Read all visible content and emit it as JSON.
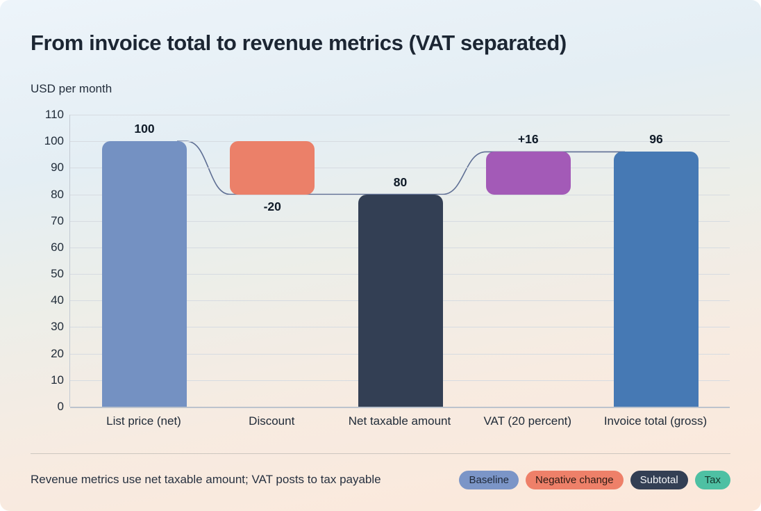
{
  "card": {
    "title": "From invoice total to revenue metrics (VAT separated)",
    "axis_title": "USD per month",
    "footnote": "Revenue metrics use net taxable amount; VAT posts to tax payable"
  },
  "legend": [
    {
      "label": "Baseline",
      "bg": "#7b95c7",
      "fg": "#1e2838"
    },
    {
      "label": "Negative change",
      "bg": "#ee8069",
      "fg": "#2b1a14"
    },
    {
      "label": "Subtotal",
      "bg": "#333f54",
      "fg": "#f4f6f9"
    },
    {
      "label": "Tax",
      "bg": "#4ec0a3",
      "fg": "#13342a"
    }
  ],
  "chart_data": {
    "type": "bar",
    "subtype": "waterfall",
    "title": "From invoice total to revenue metrics (VAT separated)",
    "ylabel": "USD per month",
    "ylim": [
      0,
      110
    ],
    "y_ticks": [
      0,
      10,
      20,
      30,
      40,
      50,
      60,
      70,
      80,
      90,
      100,
      110
    ],
    "grid": true,
    "legend_position": "bottom-right",
    "categories": [
      "List price (net)",
      "Discount",
      "Net taxable amount",
      "VAT (20 percent)",
      "Invoice total (gross)"
    ],
    "bars": [
      {
        "category": "List price (net)",
        "start": 0,
        "end": 100,
        "value": 100,
        "label": "100",
        "label_pos": "above",
        "color": "#7491c2",
        "role": "baseline"
      },
      {
        "category": "Discount",
        "start": 100,
        "end": 80,
        "value": -20,
        "label": "-20",
        "label_pos": "below",
        "color": "#eb8069",
        "role": "negative-change"
      },
      {
        "category": "Net taxable amount",
        "start": 0,
        "end": 80,
        "value": 80,
        "label": "80",
        "label_pos": "above",
        "color": "#333f54",
        "role": "subtotal"
      },
      {
        "category": "VAT (20 percent)",
        "start": 80,
        "end": 96,
        "value": 16,
        "label": "+16",
        "label_pos": "above",
        "color": "#a35ab7",
        "role": "tax"
      },
      {
        "category": "Invoice total (gross)",
        "start": 0,
        "end": 96,
        "value": 96,
        "label": "96",
        "label_pos": "above",
        "color": "#4679b4",
        "role": "total"
      }
    ],
    "connector": {
      "cumulative_levels": [
        100,
        80,
        80,
        96,
        96
      ],
      "color": "#5f6f94"
    }
  }
}
